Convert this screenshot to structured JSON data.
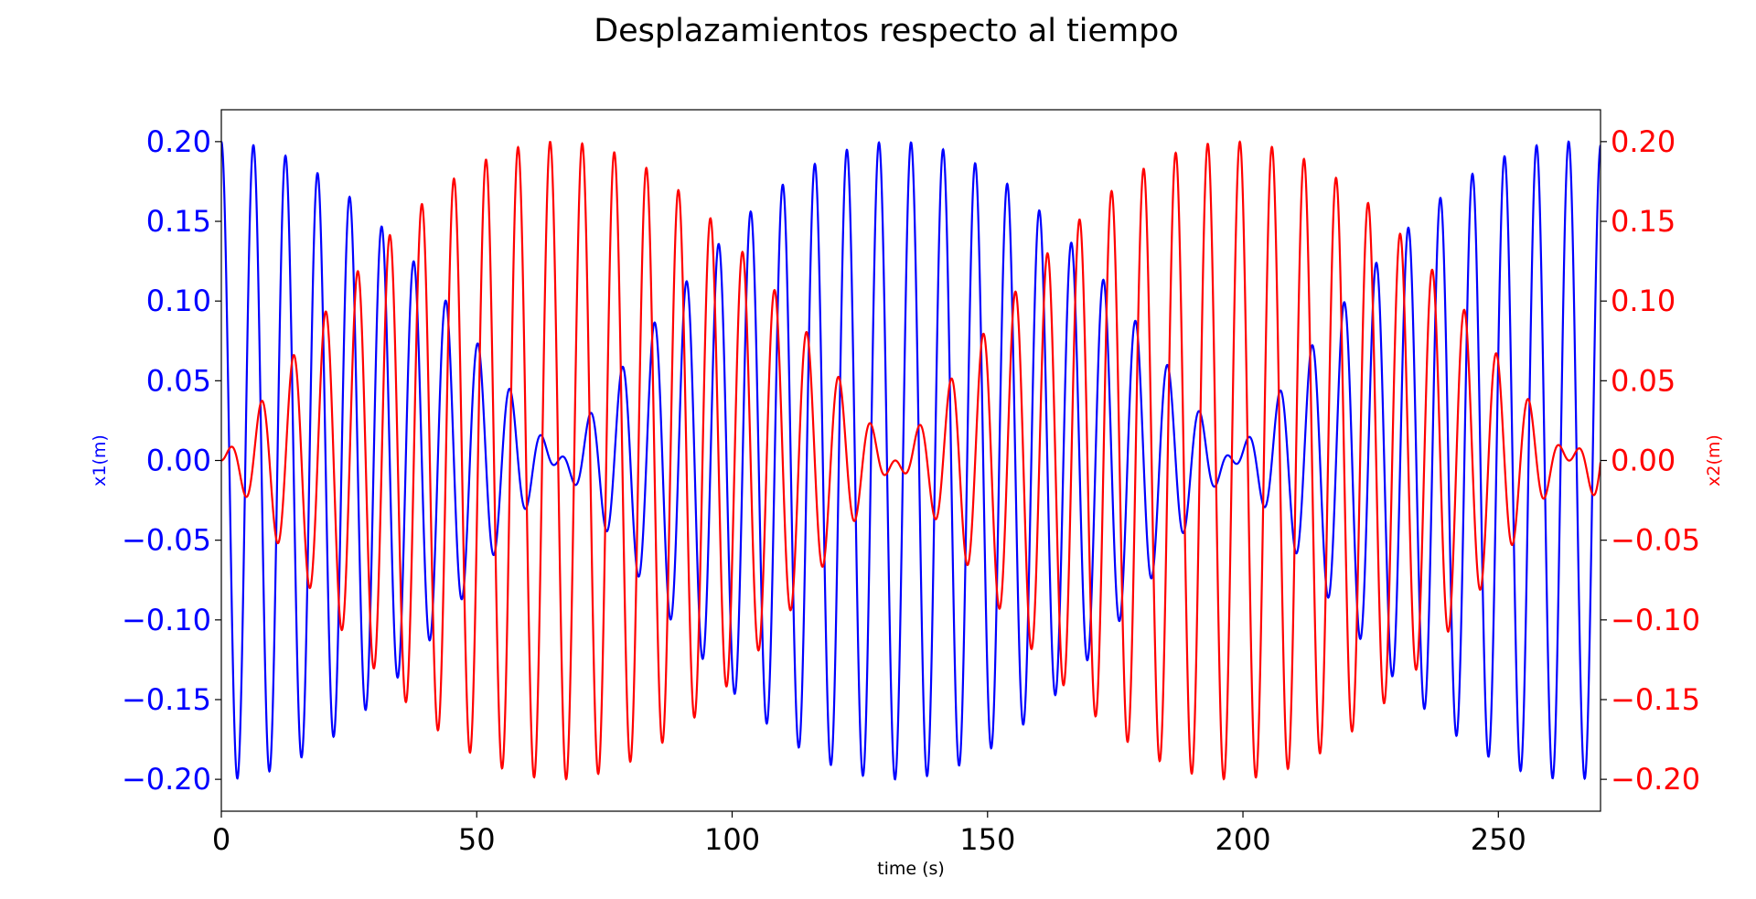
{
  "chart_data": {
    "type": "line",
    "title": "Desplazamientos respecto al tiempo",
    "xlabel": "time (s)",
    "ylabel_left": "x1(m)",
    "ylabel_right": "x2(m)",
    "xlim": [
      0,
      270
    ],
    "ylim": [
      -0.22,
      0.22
    ],
    "x_ticks": [
      0,
      50,
      100,
      150,
      200,
      250
    ],
    "y_ticks": [
      -0.2,
      -0.15,
      -0.1,
      -0.05,
      0.0,
      0.05,
      0.1,
      0.15,
      0.2
    ],
    "y_tick_labels": [
      "−0.20",
      "−0.15",
      "−0.10",
      "−0.05",
      "0.00",
      "0.05",
      "0.10",
      "0.15",
      "0.20"
    ],
    "grid": false,
    "series": [
      {
        "axis": "left",
        "color": "#0000ff",
        "amplitude": 0.2,
        "carrier_period": 6.28,
        "beat_period": 132,
        "envelope": "cos",
        "description": "x1 displacement — starts at 0.20, beats with minimum near t=66 and t=198"
      },
      {
        "axis": "right",
        "color": "#ff0000",
        "amplitude": 0.2,
        "carrier_period": 6.28,
        "beat_period": 132,
        "envelope": "sin",
        "description": "x2 displacement — starts at 0.00, beats with maximum near t=66 and t=198"
      }
    ],
    "axis_colors": {
      "left": "#0000ff",
      "right": "#ff0000"
    }
  }
}
